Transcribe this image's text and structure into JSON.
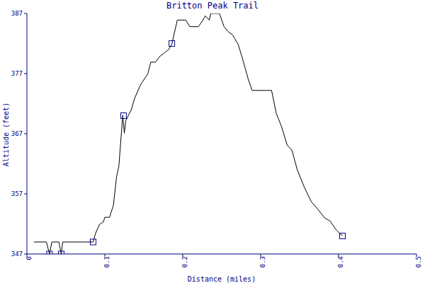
{
  "chart_data": {
    "type": "line",
    "title": "Britton Peak Trail",
    "x_label": "Distance (miles)",
    "y_label": "Altitude (feet)",
    "xlim": [
      0,
      0.5
    ],
    "xticks": [
      0,
      0.1,
      0.2,
      0.3,
      0.4,
      0.5
    ],
    "ylim": [
      347,
      387
    ],
    "yticks": [
      347,
      357,
      367,
      377,
      387
    ],
    "grid": false,
    "series": [
      {
        "type": "line",
        "color": "#000000",
        "x": [
          0.009,
          0.025,
          0.029,
          0.032,
          0.041,
          0.044,
          0.046,
          0.085,
          0.088,
          0.093,
          0.098,
          0.1,
          0.106,
          0.111,
          0.115,
          0.118,
          0.123,
          0.125,
          0.127,
          0.134,
          0.138,
          0.145,
          0.147,
          0.155,
          0.159,
          0.165,
          0.17,
          0.176,
          0.182,
          0.186,
          0.193,
          0.204,
          0.209,
          0.22,
          0.225,
          0.229,
          0.234,
          0.236,
          0.247,
          0.253,
          0.258,
          0.264,
          0.271,
          0.276,
          0.284,
          0.289,
          0.314,
          0.32,
          0.327,
          0.334,
          0.34,
          0.347,
          0.356,
          0.365,
          0.373,
          0.382,
          0.389,
          0.397,
          0.405
        ],
        "values": [
          349,
          349,
          347,
          349,
          349,
          347,
          349,
          349,
          350.4,
          351.9,
          352.3,
          353.1,
          353.1,
          355.1,
          359.8,
          361.6,
          370.1,
          367.1,
          369.2,
          371,
          372.8,
          374.9,
          375.4,
          376.9,
          378.9,
          378.9,
          379.8,
          380.4,
          381,
          381.9,
          385.9,
          385.9,
          384.8,
          384.8,
          385.7,
          386.6,
          385.9,
          387,
          387,
          384.8,
          384,
          383.4,
          381.9,
          379.8,
          376.1,
          374.2,
          374.2,
          370.4,
          368.1,
          365.1,
          364.3,
          361,
          358.1,
          355.7,
          354.5,
          353,
          352.5,
          351,
          350
        ]
      },
      {
        "type": "scatter",
        "color": "#00008b",
        "marker": "square",
        "x": [
          0.029,
          0.044,
          0.085,
          0.124,
          0.186,
          0.405
        ],
        "values": [
          347,
          347,
          349,
          370,
          382,
          350
        ]
      }
    ]
  }
}
